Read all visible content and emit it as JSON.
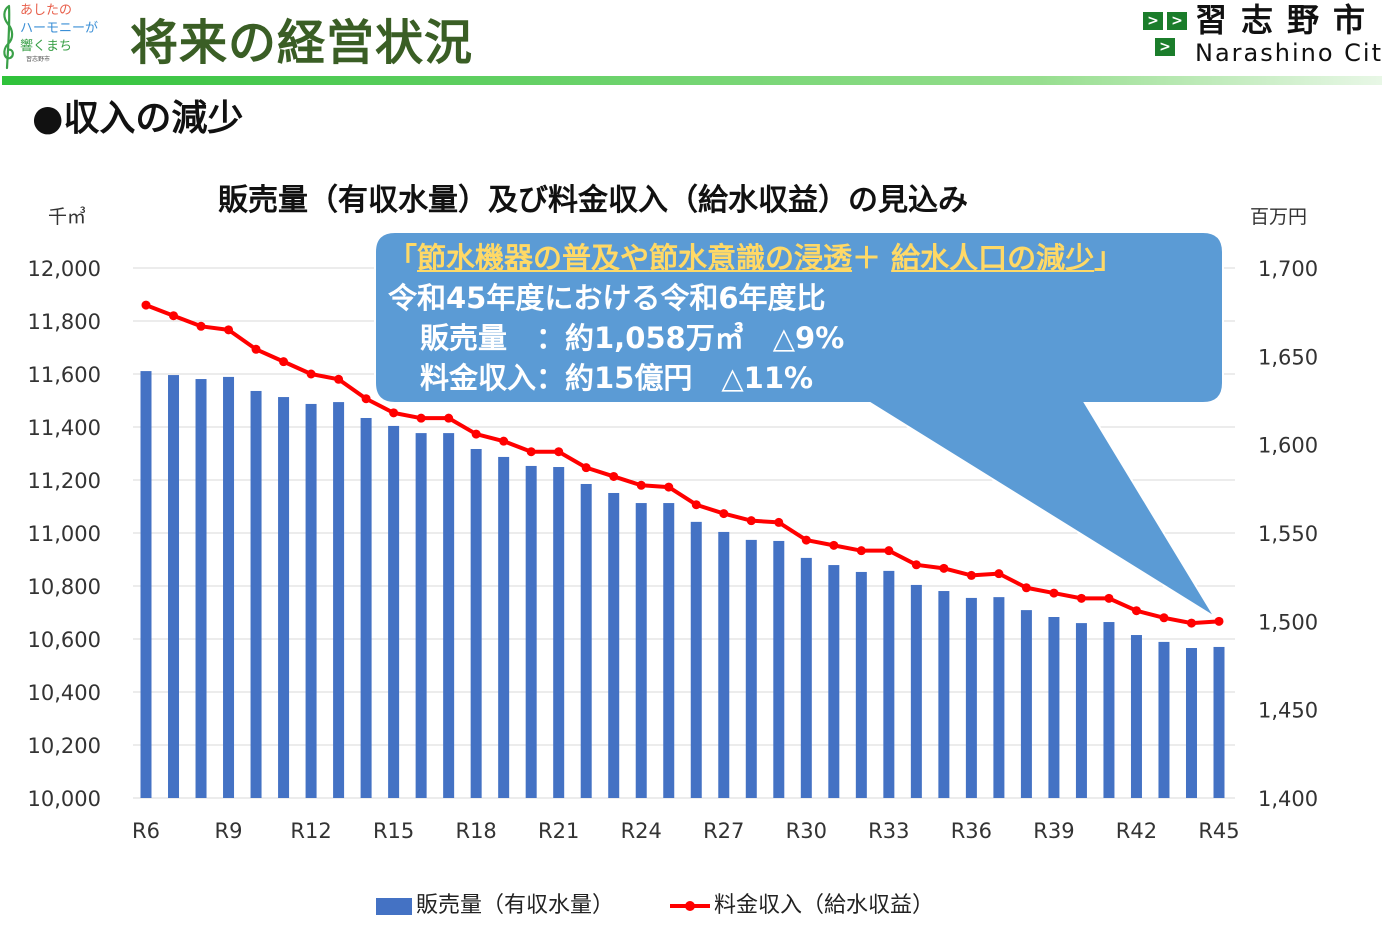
{
  "header": {
    "logo_lines": [
      "あしたの",
      "ハーモニーが",
      "響くまち",
      "習志野市"
    ],
    "title": "将来の経営状況",
    "city_name_jp": "習志野市",
    "city_name_en": "Narashino City"
  },
  "section_heading": "●収入の減少",
  "callout": {
    "open_bracket": "「",
    "cause1": "節水機器の普及や",
    "cause2": "節水意識の浸透",
    "plus": "＋ ",
    "cause3": "給水人口の減少",
    "close_bracket": "」",
    "line2": "令和45年度における令和6年度比",
    "line3": "販売量　：約1,058万㎥　△9%",
    "line4": "料金収入：約15億円　△11%"
  },
  "colors": {
    "bars": "#4472c4",
    "line": "#ff0000",
    "callout": "#5b9bd5",
    "title_green": "#3a5e25"
  },
  "chart_data": {
    "type": "bar+line",
    "title": "販売量（有収水量）及び料金収入（給水収益）の見込み",
    "left_unit": "千㎥",
    "right_unit": "百万円",
    "ylim_left": [
      10000,
      12000
    ],
    "ylim_right": [
      1400,
      1700
    ],
    "left_ticks": [
      "10,000",
      "10,200",
      "10,400",
      "10,600",
      "10,800",
      "11,000",
      "11,200",
      "11,400",
      "11,600",
      "11,800",
      "12,000"
    ],
    "right_ticks": [
      "1,400",
      "1,450",
      "1,500",
      "1,550",
      "1,600",
      "1,650",
      "1,700"
    ],
    "categories": [
      "R6",
      "R7",
      "R8",
      "R9",
      "R10",
      "R11",
      "R12",
      "R13",
      "R14",
      "R15",
      "R16",
      "R17",
      "R18",
      "R19",
      "R20",
      "R21",
      "R22",
      "R23",
      "R24",
      "R25",
      "R26",
      "R27",
      "R28",
      "R29",
      "R30",
      "R31",
      "R32",
      "R33",
      "R34",
      "R35",
      "R36",
      "R37",
      "R38",
      "R39",
      "R40",
      "R41",
      "R42",
      "R43",
      "R44",
      "R45"
    ],
    "x_tick_labels": [
      "R6",
      "R9",
      "R12",
      "R15",
      "R18",
      "R21",
      "R24",
      "R27",
      "R30",
      "R33",
      "R36",
      "R39",
      "R42",
      "R45"
    ],
    "grid": true,
    "legend_position": "bottom",
    "series": [
      {
        "name": "販売量（有収水量）",
        "type": "bar",
        "axis": "left",
        "values": [
          11611,
          11596,
          11581,
          11589,
          11536,
          11513,
          11487,
          11494,
          11434,
          11404,
          11377,
          11377,
          11317,
          11287,
          11253,
          11249,
          11185,
          11151,
          11113,
          11113,
          11042,
          11004,
          10974,
          10970,
          10906,
          10879,
          10853,
          10857,
          10804,
          10781,
          10755,
          10758,
          10709,
          10683,
          10660,
          10664,
          10615,
          10589,
          10566,
          10570
        ]
      },
      {
        "name": "料金収入（給水収益）",
        "type": "line",
        "axis": "right",
        "values": [
          1679,
          1673,
          1667,
          1665,
          1654,
          1647,
          1640,
          1637,
          1626,
          1618,
          1615,
          1615,
          1606,
          1602,
          1596,
          1596,
          1587,
          1582,
          1577,
          1576,
          1566,
          1561,
          1557,
          1556,
          1546,
          1543,
          1540,
          1540,
          1532,
          1530,
          1526,
          1527,
          1519,
          1516,
          1513,
          1513,
          1506,
          1502,
          1499,
          1500
        ]
      }
    ]
  }
}
